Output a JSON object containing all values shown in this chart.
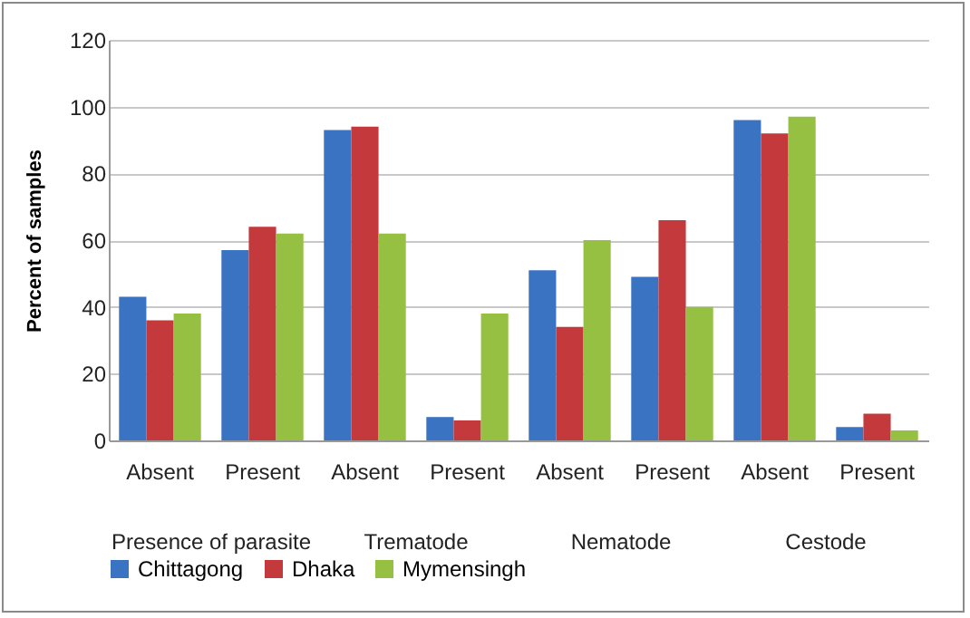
{
  "chart_data": {
    "type": "bar",
    "ylabel": "Percent of samples",
    "categories": [
      "Absent",
      "Present",
      "Absent",
      "Present",
      "Absent",
      "Present",
      "Absent",
      "Present"
    ],
    "annotations": [
      "Presence of parasite",
      "Trematode",
      "Nematode",
      "Cestode"
    ],
    "series": [
      {
        "name": "Chittagong",
        "color": "#3a73c2",
        "values": [
          43,
          57,
          93,
          7,
          51,
          49,
          96,
          4
        ]
      },
      {
        "name": "Dhaka",
        "color": "#c4393b",
        "values": [
          36,
          64,
          94,
          6,
          34,
          66,
          92,
          8
        ]
      },
      {
        "name": "Mymensingh",
        "color": "#95c042",
        "values": [
          38,
          62,
          62,
          38,
          60,
          40,
          97,
          3
        ]
      }
    ],
    "ylim": [
      0,
      120
    ],
    "yticks": [
      0,
      20,
      40,
      60,
      80,
      100,
      120
    ],
    "grid": "y",
    "legend": "bottom"
  }
}
